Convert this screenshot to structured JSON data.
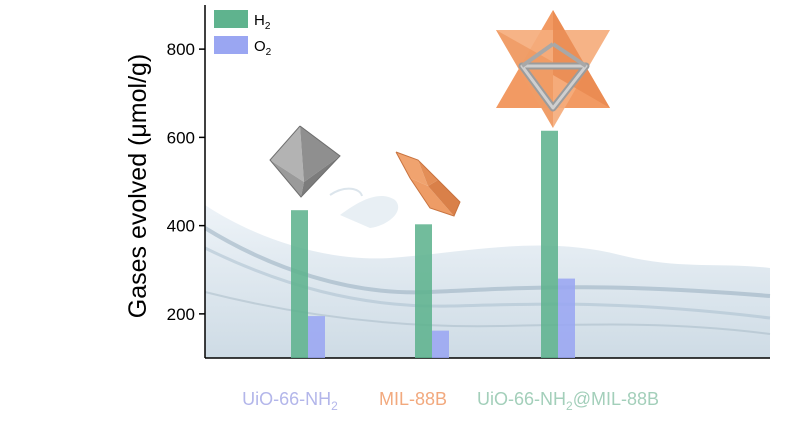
{
  "chart_data": {
    "type": "bar",
    "categories": [
      "UiO-66-NH2",
      "MIL-88B",
      "UiO-66-NH2@MIL-88B"
    ],
    "category_display": [
      {
        "base": "UiO-66-NH",
        "sub": "2",
        "rest": "",
        "color": "#b3b6ea"
      },
      {
        "base": "MIL-88B",
        "sub": "",
        "rest": "",
        "color": "#f2a97e"
      },
      {
        "base": "UiO-66-NH",
        "sub": "2",
        "rest": "@MIL-88B",
        "color": "#a3cfba"
      }
    ],
    "series": [
      {
        "name": "H2",
        "legend_base": "H",
        "legend_sub": "2",
        "color": "#5fb38e",
        "values": [
          435,
          403,
          615
        ]
      },
      {
        "name": "O2",
        "legend_base": "O",
        "legend_sub": "2",
        "color": "#9aa6f2",
        "values": [
          195,
          162,
          280
        ]
      }
    ],
    "ylabel": "Gases evolved (μmol/g)",
    "yticks": [
      200,
      400,
      600,
      800
    ],
    "ylim": [
      100,
      900
    ],
    "legend_position": "top-left",
    "icons": [
      "octahedron-crystal-icon",
      "bipyramid-crystal-icon",
      "star-tetrahedron-core-shell-icon"
    ]
  }
}
